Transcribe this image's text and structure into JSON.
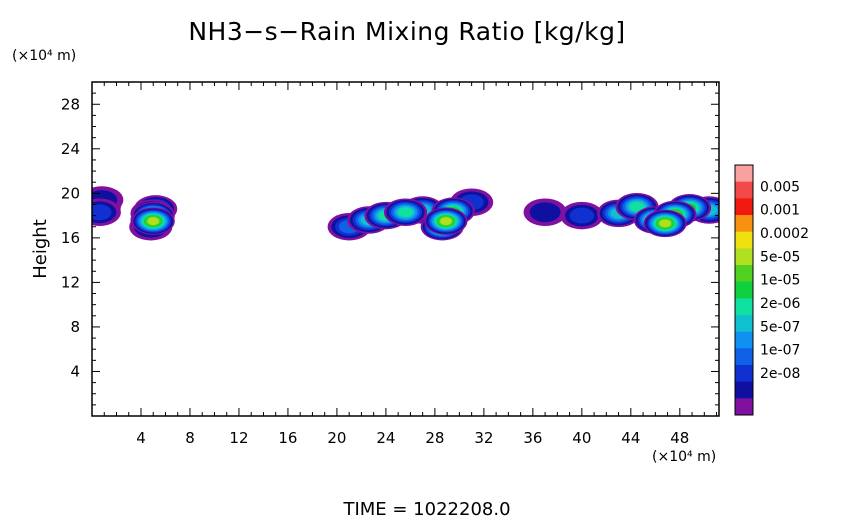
{
  "chart_data": {
    "type": "heatmap",
    "title": "NH3−s−Rain Mixing Ratio [kg/kg]",
    "xlabel": "",
    "ylabel": "Height",
    "x_unit_label": "(×10⁴ m)",
    "y_unit_label": "(×10⁴ m)",
    "xlim": [
      0,
      51.2
    ],
    "ylim": [
      0,
      30
    ],
    "x_ticks": [
      4,
      8,
      12,
      16,
      20,
      24,
      28,
      32,
      36,
      40,
      44,
      48
    ],
    "x_tick_labels": [
      "4",
      "8",
      "12",
      "16",
      "20",
      "24",
      "28",
      "32",
      "36",
      "40",
      "44",
      "48"
    ],
    "y_ticks": [
      4,
      8,
      12,
      16,
      20,
      24,
      28
    ],
    "y_tick_labels": [
      "4",
      "8",
      "12",
      "16",
      "20",
      "24",
      "28"
    ],
    "time_label": "TIME = 1022208.0",
    "colorbar": {
      "labels": [
        "0.005",
        "0.001",
        "0.0002",
        "5e-05",
        "1e-05",
        "2e-06",
        "5e-07",
        "1e-07",
        "2e-08"
      ],
      "colors": [
        "#f9a0a0",
        "#f24a4a",
        "#f01a10",
        "#f89010",
        "#f0e010",
        "#b0e020",
        "#50d020",
        "#10d040",
        "#10e0a0",
        "#10c0d0",
        "#1090f0",
        "#1060e8",
        "#1030d0",
        "#1010a0",
        "#8010a0"
      ]
    },
    "cells": [
      {
        "x": 0.6,
        "y": 18.8,
        "level": 1
      },
      {
        "x": 0.6,
        "y": 18.3,
        "level": 2
      },
      {
        "x": 0.8,
        "y": 19.4,
        "level": 1
      },
      {
        "x": 4.8,
        "y": 17.0,
        "level": 2
      },
      {
        "x": 4.9,
        "y": 17.6,
        "level": 4
      },
      {
        "x": 4.9,
        "y": 18.2,
        "level": 5
      },
      {
        "x": 5.0,
        "y": 18.0,
        "level": 8
      },
      {
        "x": 5.0,
        "y": 17.5,
        "level": 9
      },
      {
        "x": 5.2,
        "y": 18.6,
        "level": 4
      },
      {
        "x": 21.0,
        "y": 17.0,
        "level": 3
      },
      {
        "x": 22.6,
        "y": 17.6,
        "level": 5
      },
      {
        "x": 24.0,
        "y": 18.0,
        "level": 6
      },
      {
        "x": 25.6,
        "y": 18.3,
        "level": 6
      },
      {
        "x": 27.0,
        "y": 18.5,
        "level": 5
      },
      {
        "x": 28.6,
        "y": 17.0,
        "level": 8
      },
      {
        "x": 28.9,
        "y": 17.5,
        "level": 9
      },
      {
        "x": 29.5,
        "y": 18.4,
        "level": 7
      },
      {
        "x": 31.0,
        "y": 19.2,
        "level": 2
      },
      {
        "x": 37.0,
        "y": 18.3,
        "level": 1
      },
      {
        "x": 40.0,
        "y": 18.0,
        "level": 2
      },
      {
        "x": 43.0,
        "y": 18.2,
        "level": 5
      },
      {
        "x": 44.5,
        "y": 18.8,
        "level": 6
      },
      {
        "x": 46.0,
        "y": 17.6,
        "level": 8
      },
      {
        "x": 46.8,
        "y": 17.3,
        "level": 9
      },
      {
        "x": 47.6,
        "y": 18.1,
        "level": 8
      },
      {
        "x": 48.8,
        "y": 18.7,
        "level": 7
      },
      {
        "x": 50.4,
        "y": 18.5,
        "level": 5
      }
    ]
  }
}
